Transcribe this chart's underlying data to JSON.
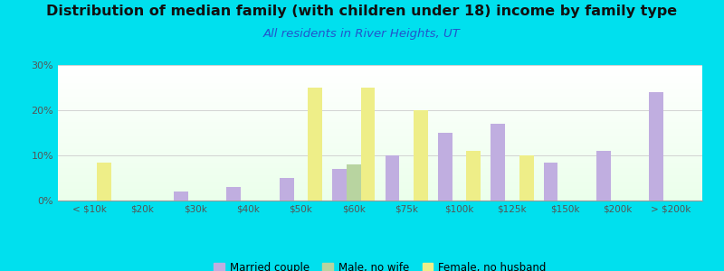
{
  "title": "Distribution of median family (with children under 18) income by family type",
  "subtitle": "All residents in River Heights, UT",
  "categories": [
    "< $10k",
    "$20k",
    "$30k",
    "$40k",
    "$50k",
    "$60k",
    "$75k",
    "$100k",
    "$125k",
    "$150k",
    "$200k",
    "> $200k"
  ],
  "married_couple": [
    0,
    0,
    2,
    3,
    5,
    7,
    10,
    15,
    17,
    8.5,
    11,
    24
  ],
  "male_no_wife": [
    0,
    0,
    0,
    0,
    0,
    8,
    0,
    0,
    0,
    0,
    0,
    0
  ],
  "female_no_husband": [
    8.5,
    0,
    0,
    0,
    25,
    25,
    20,
    11,
    10,
    0,
    0,
    0
  ],
  "married_color": "#c0aee0",
  "male_color": "#b8d4a0",
  "female_color": "#eeee88",
  "outer_bg": "#00e0ee",
  "title_fontsize": 11.5,
  "subtitle_fontsize": 9.5,
  "subtitle_color": "#2255cc",
  "ylim": [
    0,
    30
  ],
  "yticks": [
    0,
    10,
    20,
    30
  ],
  "bar_width": 0.27,
  "legend_fontsize": 8.5
}
